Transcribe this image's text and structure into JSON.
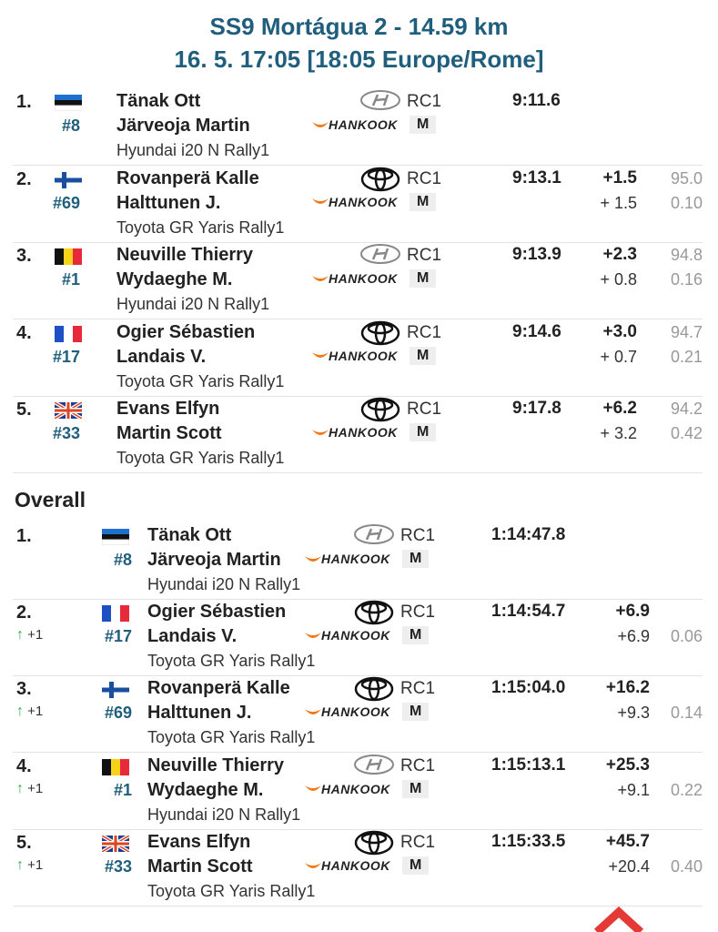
{
  "header": {
    "title": "SS9 Mortágua 2 - 14.59 km",
    "subtitle": "16. 5. 17:05 [18:05 Europe/Rome]"
  },
  "stage_results": [
    {
      "position": "1.",
      "number": "#8",
      "driver": "Tänak Ott",
      "codriver": "Järveoja Martin",
      "car": "Hyundai i20 N Rally1",
      "class": "RC1",
      "tyre": "HANKOOK",
      "compound": "M",
      "time": "9:11.6"
    },
    {
      "position": "2.",
      "number": "#69",
      "driver": "Rovanperä Kalle",
      "codriver": "Halttunen J.",
      "car": "Toyota GR Yaris Rally1",
      "class": "RC1",
      "tyre": "HANKOOK",
      "compound": "M",
      "time": "9:13.1",
      "gap": "+1.5",
      "diff": "+ 1.5",
      "speed": "95.0",
      "loss": "0.10"
    },
    {
      "position": "3.",
      "number": "#1",
      "driver": "Neuville Thierry",
      "codriver": "Wydaeghe M.",
      "car": "Hyundai i20 N Rally1",
      "class": "RC1",
      "tyre": "HANKOOK",
      "compound": "M",
      "time": "9:13.9",
      "gap": "+2.3",
      "diff": "+ 0.8",
      "speed": "94.8",
      "loss": "0.16"
    },
    {
      "position": "4.",
      "number": "#17",
      "driver": "Ogier Sébastien",
      "codriver": "Landais V.",
      "car": "Toyota GR Yaris Rally1",
      "class": "RC1",
      "tyre": "HANKOOK",
      "compound": "M",
      "time": "9:14.6",
      "gap": "+3.0",
      "diff": "+ 0.7",
      "speed": "94.7",
      "loss": "0.21"
    },
    {
      "position": "5.",
      "number": "#33",
      "driver": "Evans Elfyn",
      "codriver": "Martin Scott",
      "car": "Toyota GR Yaris Rally1",
      "class": "RC1",
      "tyre": "HANKOOK",
      "compound": "M",
      "time": "9:17.8",
      "gap": "+6.2",
      "diff": "+ 3.2",
      "speed": "94.2",
      "loss": "0.42"
    }
  ],
  "overall_title": "Overall",
  "overall_results": [
    {
      "position": "1.",
      "number": "#8",
      "driver": "Tänak Ott",
      "codriver": "Järveoja Martin",
      "car": "Hyundai i20 N Rally1",
      "class": "RC1",
      "tyre": "HANKOOK",
      "compound": "M",
      "time": "1:14:47.8"
    },
    {
      "position": "2.",
      "change": "+1",
      "number": "#17",
      "driver": "Ogier Sébastien",
      "codriver": "Landais V.",
      "car": "Toyota GR Yaris Rally1",
      "class": "RC1",
      "tyre": "HANKOOK",
      "compound": "M",
      "time": "1:14:54.7",
      "gap": "+6.9",
      "diff": "+6.9",
      "loss": "0.06"
    },
    {
      "position": "3.",
      "change": "+1",
      "number": "#69",
      "driver": "Rovanperä Kalle",
      "codriver": "Halttunen J.",
      "car": "Toyota GR Yaris Rally1",
      "class": "RC1",
      "tyre": "HANKOOK",
      "compound": "M",
      "time": "1:15:04.0",
      "gap": "+16.2",
      "diff": "+9.3",
      "loss": "0.14"
    },
    {
      "position": "4.",
      "change": "+1",
      "number": "#1",
      "driver": "Neuville Thierry",
      "codriver": "Wydaeghe M.",
      "car": "Hyundai i20 N Rally1",
      "class": "RC1",
      "tyre": "HANKOOK",
      "compound": "M",
      "time": "1:15:13.1",
      "gap": "+25.3",
      "diff": "+9.1",
      "loss": "0.22"
    },
    {
      "position": "5.",
      "change": "+1",
      "number": "#33",
      "driver": "Evans Elfyn",
      "codriver": "Martin Scott",
      "car": "Toyota GR Yaris Rally1",
      "class": "RC1",
      "tyre": "HANKOOK",
      "compound": "M",
      "time": "1:15:33.5",
      "gap": "+45.7",
      "diff": "+20.4",
      "loss": "0.40"
    }
  ]
}
